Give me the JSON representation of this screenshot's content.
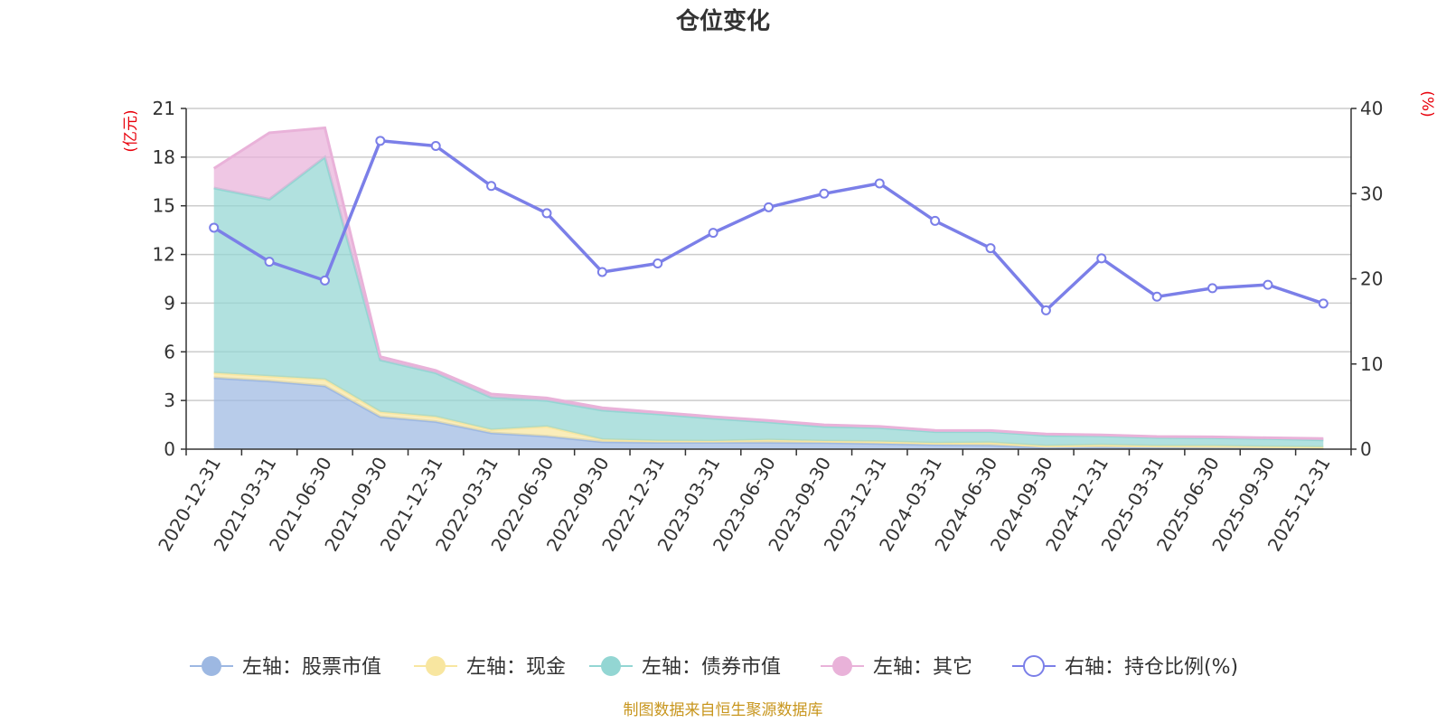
{
  "chart_data": {
    "type": "area",
    "title": "仓位变化",
    "left_unit": "(亿元)",
    "right_unit": "(%)",
    "source": "制图数据来自恒生聚源数据库",
    "categories": [
      "2020-12-31",
      "2021-03-31",
      "2021-06-30",
      "2021-09-30",
      "2021-12-31",
      "2022-03-31",
      "2022-06-30",
      "2022-09-30",
      "2022-12-31",
      "2023-03-31",
      "2023-06-30",
      "2023-09-30",
      "2023-12-31",
      "2024-03-31",
      "2024-06-30",
      "2024-09-30",
      "2024-12-31",
      "2025-03-31",
      "2025-06-30",
      "2025-09-30",
      "2025-12-31"
    ],
    "ylim_left": [
      0,
      21
    ],
    "yticks_left": [
      0,
      3,
      6,
      9,
      12,
      15,
      18,
      21
    ],
    "ylim_right": [
      0,
      40
    ],
    "yticks_right": [
      0,
      10,
      20,
      30,
      40
    ],
    "stacked_series": [
      {
        "name": "左轴：股票市值",
        "color": "#9db8e2",
        "values": [
          4.4,
          4.2,
          3.9,
          2.0,
          1.7,
          1.0,
          0.8,
          0.45,
          0.42,
          0.42,
          0.42,
          0.4,
          0.35,
          0.28,
          0.25,
          0.1,
          0.12,
          0.1,
          0.08,
          0.07,
          0.05
        ]
      },
      {
        "name": "左轴：现金",
        "color": "#f8e6a0",
        "values": [
          0.3,
          0.3,
          0.4,
          0.3,
          0.3,
          0.2,
          0.6,
          0.15,
          0.1,
          0.08,
          0.15,
          0.1,
          0.12,
          0.1,
          0.15,
          0.1,
          0.15,
          0.1,
          0.12,
          0.08,
          0.07
        ]
      },
      {
        "name": "左轴：债券市值",
        "color": "#93d6d3",
        "values": [
          11.4,
          10.9,
          13.7,
          3.2,
          2.7,
          2.0,
          1.6,
          1.8,
          1.65,
          1.4,
          1.1,
          0.9,
          0.85,
          0.7,
          0.68,
          0.65,
          0.55,
          0.52,
          0.5,
          0.5,
          0.45
        ]
      },
      {
        "name": "左轴：其它",
        "color": "#e9b2d9",
        "values": [
          1.2,
          4.1,
          1.8,
          0.2,
          0.15,
          0.2,
          0.15,
          0.15,
          0.1,
          0.1,
          0.1,
          0.1,
          0.08,
          0.08,
          0.07,
          0.08,
          0.06,
          0.06,
          0.06,
          0.05,
          0.08
        ]
      }
    ],
    "line_series": {
      "name": "右轴：持仓比例(%)",
      "color": "#7b7fe8",
      "values": [
        26.0,
        22.0,
        19.8,
        36.2,
        35.6,
        30.9,
        27.7,
        20.8,
        21.8,
        25.4,
        28.4,
        30.0,
        31.2,
        26.8,
        23.6,
        16.3,
        22.4,
        17.9,
        18.9,
        19.3,
        17.1
      ]
    }
  }
}
